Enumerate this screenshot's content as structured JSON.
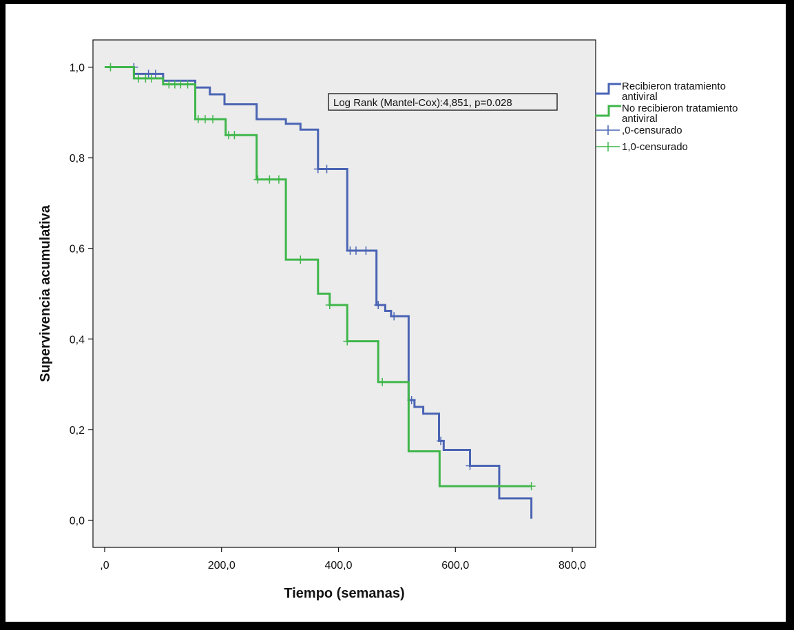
{
  "chart_data": {
    "type": "line",
    "subtype": "kaplan-meier",
    "xlabel": "Tiempo (semanas)",
    "ylabel": "Supervivencia acumulativa",
    "xlim": [
      -20,
      840
    ],
    "ylim": [
      -0.06,
      1.06
    ],
    "x_ticks": [
      0,
      200,
      400,
      600,
      800
    ],
    "x_tick_labels": [
      ",0",
      "200,0",
      "400,0",
      "600,0",
      "800,0"
    ],
    "y_ticks": [
      0,
      0.2,
      0.4,
      0.6,
      0.8,
      1.0
    ],
    "y_tick_labels": [
      "0,0",
      "0,2",
      "0,4",
      "0,6",
      "0,8",
      "1,0"
    ],
    "annotation": "Log Rank (Mantel-Cox):4,851, p=0.028",
    "legend": {
      "placement": "right",
      "entries": [
        {
          "label_lines": [
            "Recibieron tratamiento",
            "antiviral"
          ],
          "kind": "step",
          "color": "#4a64b4"
        },
        {
          "label_lines": [
            "No recibieron tratamiento",
            "antiviral"
          ],
          "kind": "step",
          "color": "#3fb64a"
        },
        {
          "label_lines": [
            ",0-censurado"
          ],
          "kind": "censor",
          "color": "#4a64b4"
        },
        {
          "label_lines": [
            "1,0-censurado"
          ],
          "kind": "censor",
          "color": "#3fb64a"
        }
      ]
    },
    "series": [
      {
        "name": "Recibieron tratamiento antiviral",
        "color": "#4a64b4",
        "steps": [
          [
            0,
            1.0
          ],
          [
            50,
            0.985
          ],
          [
            100,
            0.97
          ],
          [
            155,
            0.955
          ],
          [
            180,
            0.94
          ],
          [
            205,
            0.918
          ],
          [
            260,
            0.885
          ],
          [
            310,
            0.875
          ],
          [
            335,
            0.862
          ],
          [
            365,
            0.775
          ],
          [
            415,
            0.595
          ],
          [
            465,
            0.475
          ],
          [
            480,
            0.462
          ],
          [
            490,
            0.45
          ],
          [
            520,
            0.265
          ],
          [
            530,
            0.25
          ],
          [
            545,
            0.235
          ],
          [
            572,
            0.175
          ],
          [
            580,
            0.155
          ],
          [
            625,
            0.12
          ],
          [
            675,
            0.048
          ],
          [
            730,
            0.003
          ]
        ],
        "end": 730,
        "censored": [
          [
            50,
            1.0
          ],
          [
            75,
            0.985
          ],
          [
            87,
            0.985
          ],
          [
            365,
            0.775
          ],
          [
            380,
            0.775
          ],
          [
            420,
            0.595
          ],
          [
            430,
            0.595
          ],
          [
            447,
            0.595
          ],
          [
            468,
            0.475
          ],
          [
            495,
            0.45
          ],
          [
            525,
            0.265
          ],
          [
            575,
            0.175
          ],
          [
            625,
            0.12
          ]
        ]
      },
      {
        "name": "No recibieron tratamiento antiviral",
        "color": "#3fb64a",
        "steps": [
          [
            0,
            1.0
          ],
          [
            50,
            0.975
          ],
          [
            100,
            0.962
          ],
          [
            155,
            0.885
          ],
          [
            207,
            0.85
          ],
          [
            260,
            0.752
          ],
          [
            310,
            0.575
          ],
          [
            365,
            0.5
          ],
          [
            385,
            0.475
          ],
          [
            415,
            0.395
          ],
          [
            468,
            0.305
          ],
          [
            520,
            0.152
          ],
          [
            573,
            0.075
          ]
        ],
        "end": 730,
        "censored": [
          [
            10,
            1.0
          ],
          [
            58,
            0.975
          ],
          [
            70,
            0.975
          ],
          [
            80,
            0.975
          ],
          [
            110,
            0.962
          ],
          [
            120,
            0.962
          ],
          [
            130,
            0.962
          ],
          [
            142,
            0.962
          ],
          [
            160,
            0.885
          ],
          [
            172,
            0.885
          ],
          [
            185,
            0.885
          ],
          [
            212,
            0.85
          ],
          [
            222,
            0.85
          ],
          [
            262,
            0.752
          ],
          [
            282,
            0.752
          ],
          [
            298,
            0.752
          ],
          [
            335,
            0.575
          ],
          [
            385,
            0.475
          ],
          [
            415,
            0.395
          ],
          [
            475,
            0.305
          ],
          [
            730,
            0.075
          ]
        ]
      }
    ]
  }
}
